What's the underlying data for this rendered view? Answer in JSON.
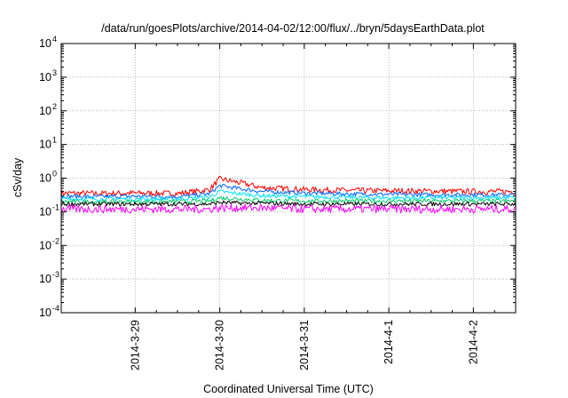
{
  "chart_data": {
    "type": "line",
    "title": "/data/run/goesPlots/archive/2014-04-02/12:00/flux/../bryn/5daysEarthData.plot",
    "xlabel": "Coordinated Universal Time (UTC)",
    "ylabel": "cSv/day",
    "yscale": "log",
    "ylim": [
      0.0001,
      10000
    ],
    "xlim": [
      "2014-03-28 03:00",
      "2014-04-02 12:00"
    ],
    "x_ticks": [
      {
        "label": "2014-3-29",
        "value": "2014-03-29 00:00"
      },
      {
        "label": "2014-3-30",
        "value": "2014-03-30 00:00"
      },
      {
        "label": "2014-3-31",
        "value": "2014-03-31 00:00"
      },
      {
        "label": "2014-4-1",
        "value": "2014-04-01 00:00"
      },
      {
        "label": "2014-4-2",
        "value": "2014-04-02 00:00"
      }
    ],
    "y_ticks": [
      {
        "base": "10",
        "exp": "-4",
        "value": 0.0001
      },
      {
        "base": "10",
        "exp": "-3",
        "value": 0.001
      },
      {
        "base": "10",
        "exp": "-2",
        "value": 0.01
      },
      {
        "base": "10",
        "exp": "-1",
        "value": 0.1
      },
      {
        "base": "10",
        "exp": "0",
        "value": 1
      },
      {
        "base": "10",
        "exp": "1",
        "value": 10
      },
      {
        "base": "10",
        "exp": "2",
        "value": 100
      },
      {
        "base": "10",
        "exp": "3",
        "value": 1000
      },
      {
        "base": "10",
        "exp": "4",
        "value": 10000
      }
    ],
    "grid": true,
    "legend": "none",
    "series": [
      {
        "color": "#ff0000",
        "x": [
          "2014-03-28 03:00",
          "2014-03-28 12:00",
          "2014-03-29 00:00",
          "2014-03-29 12:00",
          "2014-03-29 21:00",
          "2014-03-30 00:00",
          "2014-03-30 06:00",
          "2014-03-30 12:00",
          "2014-03-31 00:00",
          "2014-03-31 12:00",
          "2014-04-01 00:00",
          "2014-04-01 12:00",
          "2014-04-02 00:00",
          "2014-04-02 12:00"
        ],
        "y": [
          0.36,
          0.35,
          0.36,
          0.35,
          0.45,
          0.95,
          0.72,
          0.52,
          0.46,
          0.43,
          0.42,
          0.41,
          0.4,
          0.4
        ]
      },
      {
        "color": "#0066ff",
        "x": [
          "2014-03-28 03:00",
          "2014-03-28 12:00",
          "2014-03-29 00:00",
          "2014-03-29 12:00",
          "2014-03-29 21:00",
          "2014-03-30 00:00",
          "2014-03-30 06:00",
          "2014-03-30 12:00",
          "2014-03-31 00:00",
          "2014-03-31 12:00",
          "2014-04-01 00:00",
          "2014-04-01 12:00",
          "2014-04-02 00:00",
          "2014-04-02 12:00"
        ],
        "y": [
          0.29,
          0.28,
          0.29,
          0.28,
          0.34,
          0.6,
          0.48,
          0.4,
          0.36,
          0.34,
          0.33,
          0.32,
          0.32,
          0.32
        ]
      },
      {
        "color": "#00e0ff",
        "x": [
          "2014-03-28 03:00",
          "2014-03-28 12:00",
          "2014-03-29 00:00",
          "2014-03-29 12:00",
          "2014-03-29 21:00",
          "2014-03-30 00:00",
          "2014-03-30 06:00",
          "2014-03-30 12:00",
          "2014-03-31 00:00",
          "2014-03-31 12:00",
          "2014-04-01 00:00",
          "2014-04-01 12:00",
          "2014-04-02 00:00",
          "2014-04-02 12:00"
        ],
        "y": [
          0.24,
          0.24,
          0.24,
          0.24,
          0.27,
          0.4,
          0.34,
          0.3,
          0.28,
          0.27,
          0.26,
          0.26,
          0.26,
          0.26
        ]
      },
      {
        "color": "#00cc66",
        "x": [
          "2014-03-28 03:00",
          "2014-03-28 12:00",
          "2014-03-29 00:00",
          "2014-03-29 12:00",
          "2014-03-29 21:00",
          "2014-03-30 00:00",
          "2014-03-30 06:00",
          "2014-03-30 12:00",
          "2014-03-31 00:00",
          "2014-03-31 12:00",
          "2014-04-01 00:00",
          "2014-04-01 12:00",
          "2014-04-02 00:00",
          "2014-04-02 12:00"
        ],
        "y": [
          0.2,
          0.2,
          0.2,
          0.2,
          0.21,
          0.26,
          0.24,
          0.22,
          0.21,
          0.21,
          0.21,
          0.21,
          0.21,
          0.21
        ]
      },
      {
        "color": "#000000",
        "x": [
          "2014-03-28 03:00",
          "2014-03-28 12:00",
          "2014-03-29 00:00",
          "2014-03-29 12:00",
          "2014-03-29 21:00",
          "2014-03-30 00:00",
          "2014-03-30 06:00",
          "2014-03-30 12:00",
          "2014-03-31 00:00",
          "2014-03-31 12:00",
          "2014-04-01 00:00",
          "2014-04-01 12:00",
          "2014-04-02 00:00",
          "2014-04-02 12:00"
        ],
        "y": [
          0.17,
          0.17,
          0.17,
          0.17,
          0.17,
          0.19,
          0.18,
          0.18,
          0.17,
          0.17,
          0.17,
          0.17,
          0.17,
          0.17
        ]
      },
      {
        "color": "#ff00ff",
        "x": [
          "2014-03-28 03:00",
          "2014-03-28 12:00",
          "2014-03-29 00:00",
          "2014-03-29 12:00",
          "2014-03-29 21:00",
          "2014-03-30 00:00",
          "2014-03-30 06:00",
          "2014-03-30 12:00",
          "2014-03-31 00:00",
          "2014-03-31 12:00",
          "2014-04-01 00:00",
          "2014-04-01 12:00",
          "2014-04-02 00:00",
          "2014-04-02 12:00"
        ],
        "y": [
          0.12,
          0.12,
          0.12,
          0.12,
          0.12,
          0.13,
          0.13,
          0.13,
          0.12,
          0.12,
          0.12,
          0.12,
          0.12,
          0.12
        ]
      }
    ]
  }
}
